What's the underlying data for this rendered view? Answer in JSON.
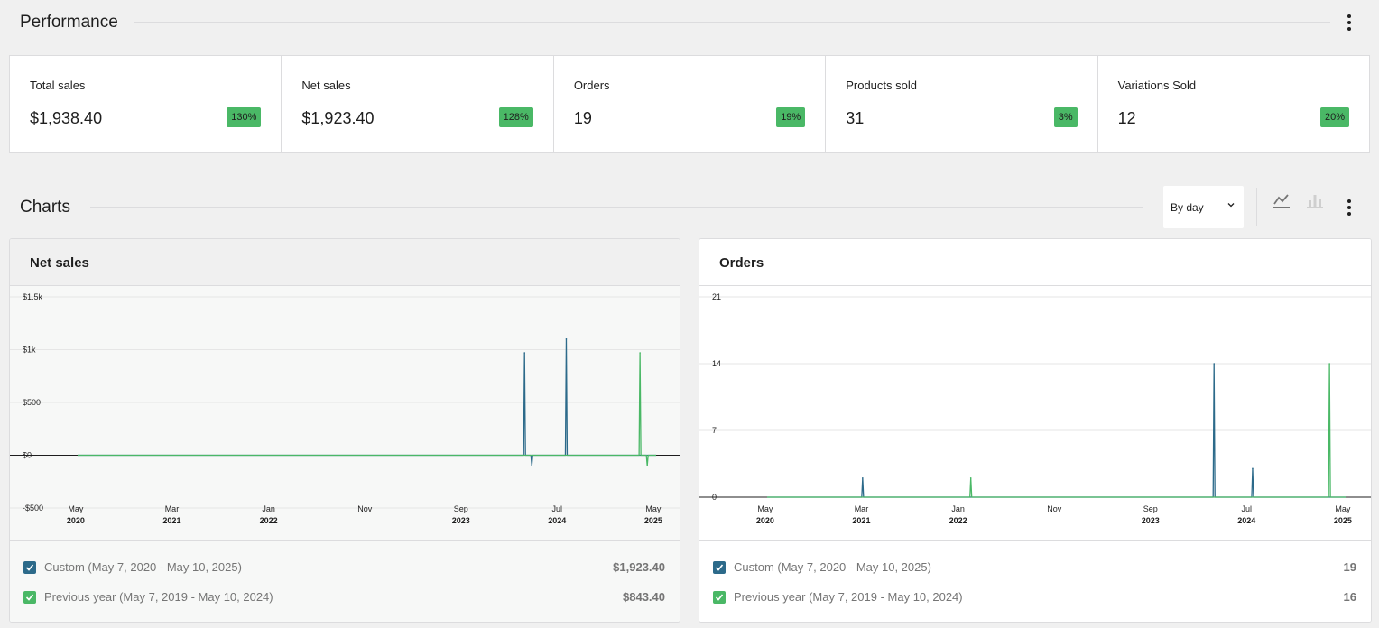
{
  "performance": {
    "title": "Performance",
    "kpis": [
      {
        "label": "Total sales",
        "value": "$1,938.40",
        "delta": "130%"
      },
      {
        "label": "Net sales",
        "value": "$1,923.40",
        "delta": "128%"
      },
      {
        "label": "Orders",
        "value": "19",
        "delta": "19%"
      },
      {
        "label": "Products sold",
        "value": "31",
        "delta": "3%"
      },
      {
        "label": "Variations Sold",
        "value": "12",
        "delta": "20%"
      }
    ]
  },
  "charts_section": {
    "title": "Charts",
    "interval_selected": "By day",
    "chart_type_icons": [
      "line-chart-icon",
      "bar-chart-icon"
    ]
  },
  "colors": {
    "primary_series": "#2c6a8a",
    "secondary_series": "#4ab866",
    "delta_badge": "#4ab866"
  },
  "chart_data": [
    {
      "type": "line",
      "title": "Net sales",
      "ylim": [
        -500,
        1500
      ],
      "y_ticks": [
        "$1.5k",
        "$1k",
        "$500",
        "$0",
        "-$500"
      ],
      "y_tick_values": [
        1500,
        1000,
        500,
        0,
        -500
      ],
      "x_ticks": [
        {
          "month": "May",
          "year": "2020",
          "date": "2020-05-01"
        },
        {
          "month": "Mar",
          "year": "2021",
          "date": "2021-03-01"
        },
        {
          "month": "Jan",
          "year": "2022",
          "date": "2022-01-01"
        },
        {
          "month": "Nov",
          "year": "",
          "date": "2022-11-01"
        },
        {
          "month": "Sep",
          "year": "2023",
          "date": "2023-09-01"
        },
        {
          "month": "Jul",
          "year": "2024",
          "date": "2024-07-01"
        },
        {
          "month": "May",
          "year": "2025",
          "date": "2025-05-01"
        }
      ],
      "xlim": [
        "2020-05-07",
        "2025-05-10"
      ],
      "series": [
        {
          "name": "Custom (May 7, 2020 - May 10, 2025)",
          "total": "$1,923.40",
          "color": "#2c6a8a",
          "points": [
            {
              "date": "2024-03-20",
              "value": 970
            },
            {
              "date": "2024-04-12",
              "value": -100
            },
            {
              "date": "2024-07-30",
              "value": 1100
            }
          ]
        },
        {
          "name": "Previous year (May 7, 2019 - May 10, 2024)",
          "total": "$843.40",
          "color": "#4ab866",
          "points": [
            {
              "date": "2025-03-20",
              "value": 970
            },
            {
              "date": "2025-04-12",
              "value": -100
            }
          ]
        }
      ]
    },
    {
      "type": "line",
      "title": "Orders",
      "ylim": [
        0,
        21
      ],
      "y_ticks": [
        "21",
        "14",
        "7",
        "0"
      ],
      "y_tick_values": [
        21,
        14,
        7,
        0
      ],
      "x_ticks": [
        {
          "month": "May",
          "year": "2020",
          "date": "2020-05-01"
        },
        {
          "month": "Mar",
          "year": "2021",
          "date": "2021-03-01"
        },
        {
          "month": "Jan",
          "year": "2022",
          "date": "2022-01-01"
        },
        {
          "month": "Nov",
          "year": "",
          "date": "2022-11-01"
        },
        {
          "month": "Sep",
          "year": "2023",
          "date": "2023-09-01"
        },
        {
          "month": "Jul",
          "year": "2024",
          "date": "2024-07-01"
        },
        {
          "month": "May",
          "year": "2025",
          "date": "2025-05-01"
        }
      ],
      "xlim": [
        "2020-05-07",
        "2025-05-10"
      ],
      "series": [
        {
          "name": "Custom (May 7, 2020 - May 10, 2025)",
          "total": "19",
          "color": "#2c6a8a",
          "points": [
            {
              "date": "2021-03-05",
              "value": 2
            },
            {
              "date": "2024-03-20",
              "value": 14
            },
            {
              "date": "2024-07-20",
              "value": 3
            }
          ]
        },
        {
          "name": "Previous year (May 7, 2019 - May 10, 2024)",
          "total": "16",
          "color": "#4ab866",
          "points": [
            {
              "date": "2022-02-10",
              "value": 2
            },
            {
              "date": "2025-03-20",
              "value": 14
            }
          ]
        }
      ]
    }
  ]
}
